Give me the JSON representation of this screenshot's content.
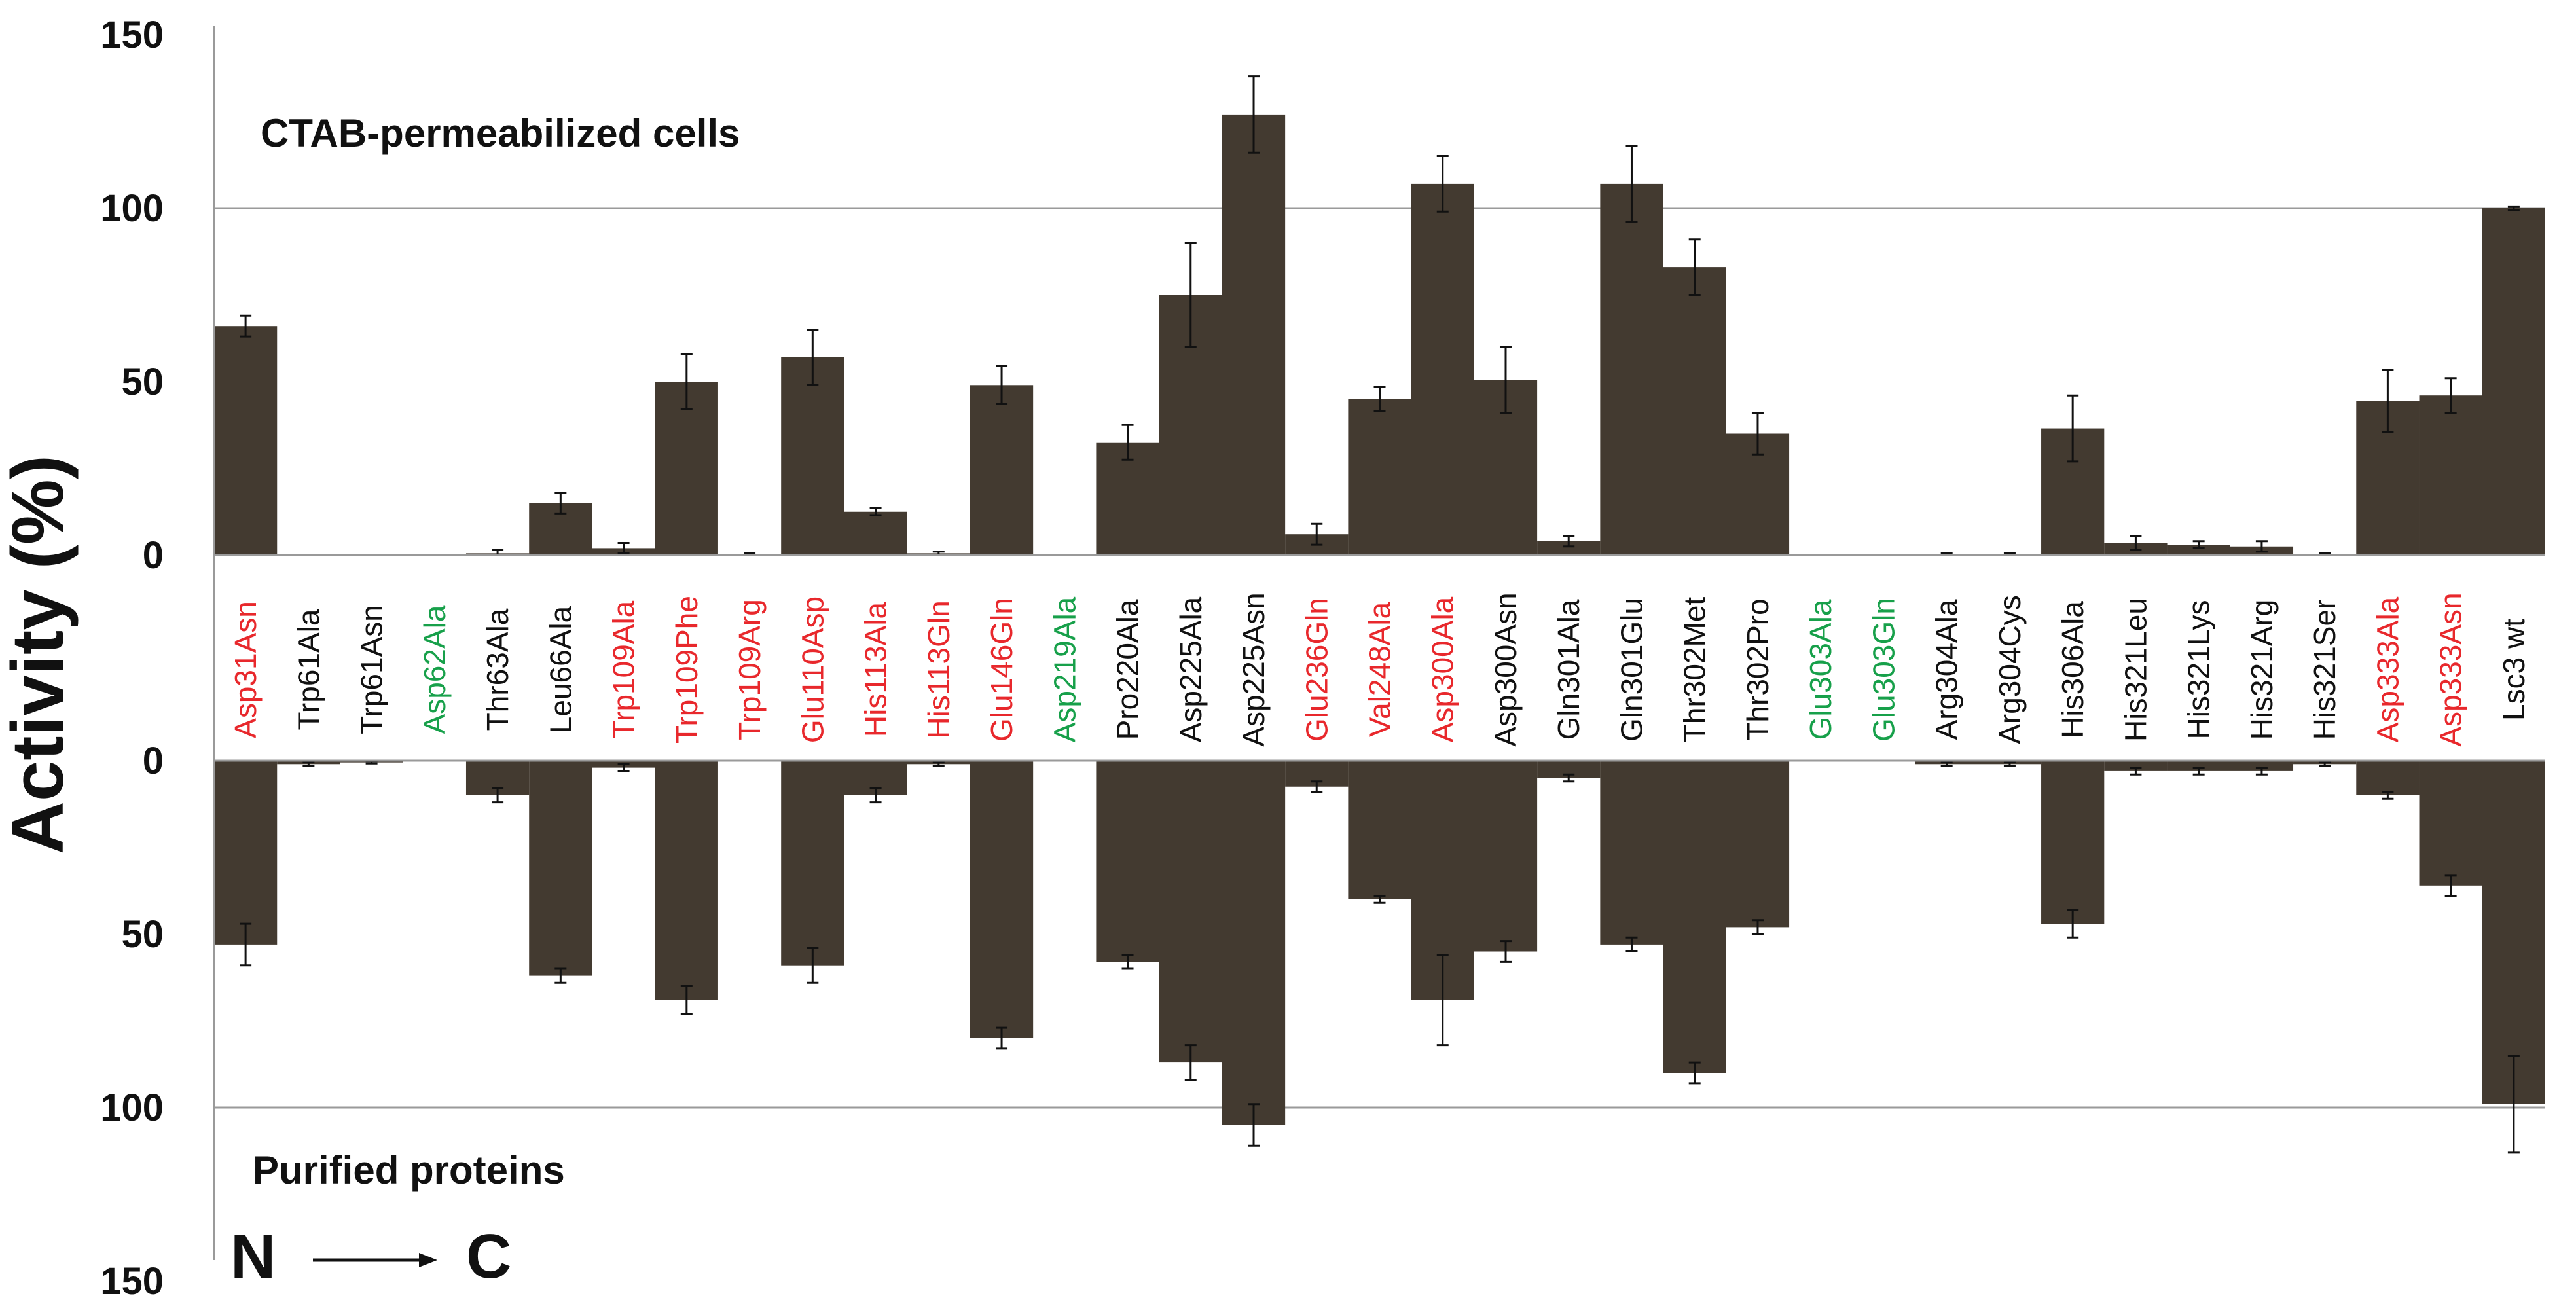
{
  "chart_data": {
    "type": "bar",
    "ylabel": "Activity (%)",
    "top_panel_title": "CTAB-permeabilized cells",
    "bottom_panel_title": "Purified proteins",
    "direction": {
      "start": "N",
      "end": "C"
    },
    "ylim_top": [
      0,
      150
    ],
    "ylim_bottom": [
      0,
      150
    ],
    "yticks_top": [
      0,
      50,
      100,
      150
    ],
    "yticks_bottom": [
      0,
      50,
      100,
      150
    ],
    "reference_line": 100,
    "bar_color": "#433a30",
    "label_colors": {
      "red": "#e8282c",
      "green": "#17a04a",
      "black": "#111111"
    },
    "categories": [
      {
        "name": "Asp31Asn",
        "color": "red"
      },
      {
        "name": "Trp61Ala",
        "color": "black"
      },
      {
        "name": "Trp61Asn",
        "color": "black"
      },
      {
        "name": "Asp62Ala",
        "color": "green"
      },
      {
        "name": "Thr63Ala",
        "color": "black"
      },
      {
        "name": "Leu66Ala",
        "color": "black"
      },
      {
        "name": "Trp109Ala",
        "color": "red"
      },
      {
        "name": "Trp109Phe",
        "color": "red"
      },
      {
        "name": "Trp109Arg",
        "color": "red"
      },
      {
        "name": "Glu110Asp",
        "color": "red"
      },
      {
        "name": "His113Ala",
        "color": "red"
      },
      {
        "name": "His113Gln",
        "color": "red"
      },
      {
        "name": "Glu146Gln",
        "color": "red"
      },
      {
        "name": "Asp219Ala",
        "color": "green"
      },
      {
        "name": "Pro220Ala",
        "color": "black"
      },
      {
        "name": "Asp225Ala",
        "color": "black"
      },
      {
        "name": "Asp225Asn",
        "color": "black"
      },
      {
        "name": "Glu236Gln",
        "color": "red"
      },
      {
        "name": "Val248Ala",
        "color": "red"
      },
      {
        "name": "Asp300Ala",
        "color": "red"
      },
      {
        "name": "Asp300Asn",
        "color": "black"
      },
      {
        "name": "Gln301Ala",
        "color": "black"
      },
      {
        "name": "Gln301Glu",
        "color": "black"
      },
      {
        "name": "Thr302Met",
        "color": "black"
      },
      {
        "name": "Thr302Pro",
        "color": "black"
      },
      {
        "name": "Glu303Ala",
        "color": "green"
      },
      {
        "name": "Glu303Gln",
        "color": "green"
      },
      {
        "name": "Arg304Ala",
        "color": "black"
      },
      {
        "name": "Arg304Cys",
        "color": "black"
      },
      {
        "name": "His306Ala",
        "color": "black"
      },
      {
        "name": "His321Leu",
        "color": "black"
      },
      {
        "name": "His321Lys",
        "color": "black"
      },
      {
        "name": "His321Arg",
        "color": "black"
      },
      {
        "name": "His321Ser",
        "color": "black"
      },
      {
        "name": "Asp333Ala",
        "color": "red"
      },
      {
        "name": "Asp333Asn",
        "color": "red"
      },
      {
        "name": "Lsc3 wt",
        "color": "black"
      }
    ],
    "series": [
      {
        "name": "CTAB-permeabilized cells",
        "values": [
          66,
          0,
          0,
          0,
          0.5,
          15,
          2,
          50,
          0.3,
          57,
          12.5,
          0.5,
          49,
          0,
          32.5,
          75,
          127,
          6,
          45,
          107,
          50.5,
          4,
          107,
          83,
          35,
          0,
          0,
          0.3,
          0.3,
          36.5,
          3.5,
          3,
          2.5,
          0.3,
          44.5,
          46,
          100
        ],
        "errors": [
          3,
          0,
          0,
          0,
          1,
          3,
          1.5,
          8,
          0.3,
          8,
          1,
          0.5,
          5.5,
          0,
          5,
          15,
          11,
          3,
          3.5,
          8,
          9.5,
          1.5,
          11,
          8,
          6,
          0,
          0,
          0.3,
          0.3,
          9.5,
          2,
          1,
          1.5,
          0.3,
          9,
          5,
          0.5
        ]
      },
      {
        "name": "Purified proteins",
        "values": [
          53,
          1,
          0.5,
          0,
          10,
          62,
          2,
          69,
          0,
          59,
          10,
          1,
          80,
          0,
          58,
          87,
          105,
          7.5,
          40,
          69,
          55,
          5,
          53,
          90,
          48,
          0,
          0,
          1,
          1,
          47,
          3,
          3,
          3,
          1,
          10,
          36,
          99
        ],
        "errors": [
          6,
          0.5,
          0.3,
          0,
          2,
          2,
          1,
          4,
          0,
          5,
          2,
          0.5,
          3,
          0,
          2,
          5,
          6,
          1.5,
          1,
          13,
          3,
          1,
          2,
          3,
          2,
          0,
          0,
          0.5,
          0.5,
          4,
          1,
          1,
          1,
          0.5,
          1,
          3,
          14
        ]
      }
    ]
  }
}
